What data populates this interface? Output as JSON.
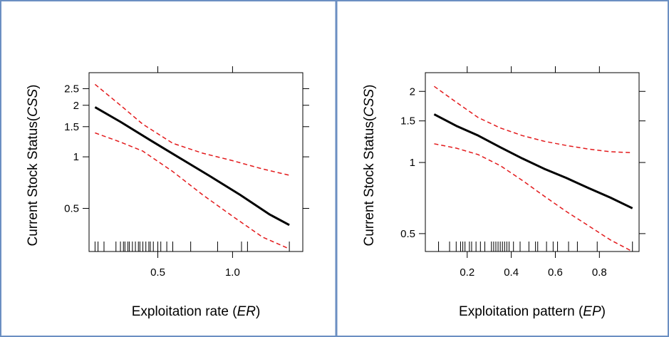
{
  "chart_data": [
    {
      "type": "line",
      "xlabel": "Exploitation rate",
      "xlabel_symbol": "ER",
      "ylabel": "Current Stock Status",
      "ylabel_symbol": "CSS",
      "y_scale": "log",
      "xlim": [
        0.04,
        1.47
      ],
      "ylim": [
        0.28,
        3.1
      ],
      "x_ticks": [
        {
          "v": 0.5,
          "label": "0.5"
        },
        {
          "v": 1.0,
          "label": "1.0"
        }
      ],
      "y_ticks": [
        {
          "v": 0.5,
          "label": "0.5"
        },
        {
          "v": 1,
          "label": "1"
        },
        {
          "v": 1.5,
          "label": "1.5"
        },
        {
          "v": 2,
          "label": "2"
        },
        {
          "v": 2.5,
          "label": "2.5"
        }
      ],
      "series": [
        {
          "role": "fit",
          "color": "#000000",
          "x": [
            0.08,
            0.25,
            0.45,
            0.65,
            0.85,
            1.05,
            1.25,
            1.38
          ],
          "y": [
            1.95,
            1.6,
            1.25,
            0.98,
            0.77,
            0.6,
            0.46,
            0.4
          ]
        },
        {
          "role": "upper",
          "color": "#e31a1c",
          "x": [
            0.08,
            0.25,
            0.4,
            0.6,
            0.8,
            1.0,
            1.2,
            1.38
          ],
          "y": [
            2.65,
            2.0,
            1.55,
            1.2,
            1.05,
            0.95,
            0.85,
            0.78
          ]
        },
        {
          "role": "lower",
          "color": "#e31a1c",
          "x": [
            0.08,
            0.25,
            0.4,
            0.6,
            0.8,
            1.0,
            1.2,
            1.38
          ],
          "y": [
            1.38,
            1.22,
            1.08,
            0.82,
            0.6,
            0.45,
            0.34,
            0.29
          ]
        }
      ],
      "rug": [
        0.08,
        0.1,
        0.14,
        0.22,
        0.25,
        0.27,
        0.28,
        0.3,
        0.31,
        0.33,
        0.35,
        0.37,
        0.38,
        0.4,
        0.42,
        0.44,
        0.45,
        0.47,
        0.5,
        0.52,
        0.56,
        0.6,
        0.72,
        0.9,
        1.06,
        1.1,
        1.38
      ]
    },
    {
      "type": "line",
      "xlabel": "Exploitation pattern",
      "xlabel_symbol": "EP",
      "ylabel": "Current Stock Status",
      "ylabel_symbol": "CSS",
      "y_scale": "log",
      "xlim": [
        0.01,
        0.98
      ],
      "ylim": [
        0.42,
        2.4
      ],
      "x_ticks": [
        {
          "v": 0.2,
          "label": "0.2"
        },
        {
          "v": 0.4,
          "label": "0.4"
        },
        {
          "v": 0.6,
          "label": "0.6"
        },
        {
          "v": 0.8,
          "label": "0.8"
        }
      ],
      "y_ticks": [
        {
          "v": 0.5,
          "label": "0.5"
        },
        {
          "v": 1,
          "label": "1"
        },
        {
          "v": 1.5,
          "label": "1.5"
        },
        {
          "v": 2,
          "label": "2"
        }
      ],
      "series": [
        {
          "role": "fit",
          "color": "#000000",
          "x": [
            0.05,
            0.15,
            0.25,
            0.35,
            0.45,
            0.55,
            0.65,
            0.75,
            0.85,
            0.95
          ],
          "y": [
            1.6,
            1.43,
            1.3,
            1.16,
            1.04,
            0.94,
            0.86,
            0.78,
            0.71,
            0.64
          ]
        },
        {
          "role": "upper",
          "color": "#e31a1c",
          "x": [
            0.05,
            0.15,
            0.25,
            0.35,
            0.45,
            0.55,
            0.65,
            0.75,
            0.85,
            0.95
          ],
          "y": [
            2.1,
            1.8,
            1.55,
            1.4,
            1.3,
            1.23,
            1.18,
            1.14,
            1.11,
            1.1
          ]
        },
        {
          "role": "lower",
          "color": "#e31a1c",
          "x": [
            0.05,
            0.15,
            0.25,
            0.35,
            0.45,
            0.55,
            0.65,
            0.75,
            0.85,
            0.95
          ],
          "y": [
            1.2,
            1.15,
            1.08,
            0.97,
            0.84,
            0.72,
            0.62,
            0.54,
            0.47,
            0.42
          ]
        }
      ],
      "rug": [
        0.07,
        0.12,
        0.15,
        0.17,
        0.18,
        0.19,
        0.21,
        0.22,
        0.24,
        0.26,
        0.28,
        0.31,
        0.32,
        0.33,
        0.34,
        0.35,
        0.36,
        0.37,
        0.38,
        0.39,
        0.41,
        0.44,
        0.48,
        0.51,
        0.52,
        0.56,
        0.59,
        0.61,
        0.66,
        0.7,
        0.79,
        0.95
      ]
    }
  ]
}
